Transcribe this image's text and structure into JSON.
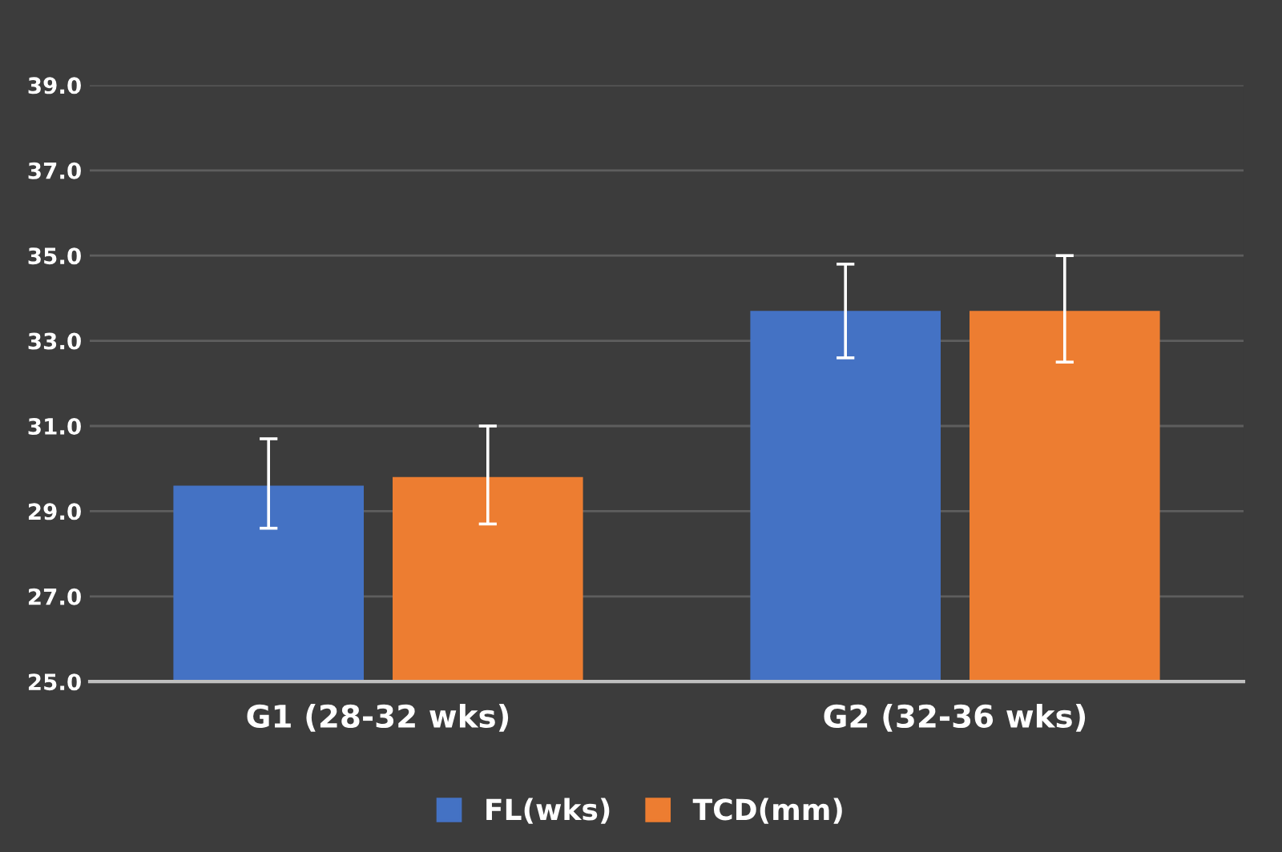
{
  "chart_data": {
    "type": "bar",
    "categories": [
      "G1 (28-32 wks)",
      "G2 (32-36 wks)"
    ],
    "series": [
      {
        "name": "FL(wks)",
        "color": "#4472c4",
        "values": [
          29.6,
          33.7
        ],
        "errors": [
          [
            28.6,
            30.7
          ],
          [
            32.6,
            34.8
          ]
        ]
      },
      {
        "name": "TCD(mm)",
        "color": "#ed7d31",
        "values": [
          29.8,
          33.7
        ],
        "errors": [
          [
            28.7,
            31.0
          ],
          [
            32.5,
            35.0
          ]
        ]
      }
    ],
    "ylim": [
      25,
      39
    ],
    "yticks": [
      {
        "value": 25,
        "label": "25.0"
      },
      {
        "value": 27,
        "label": "27.0"
      },
      {
        "value": 29,
        "label": "29.0"
      },
      {
        "value": 31,
        "label": "31.0"
      },
      {
        "value": 33,
        "label": "33.0"
      },
      {
        "value": 35,
        "label": "35.0"
      },
      {
        "value": 37,
        "label": "37.0"
      },
      {
        "value": 39,
        "label": "39.0"
      }
    ],
    "grid": "y",
    "legend": "bottom"
  }
}
